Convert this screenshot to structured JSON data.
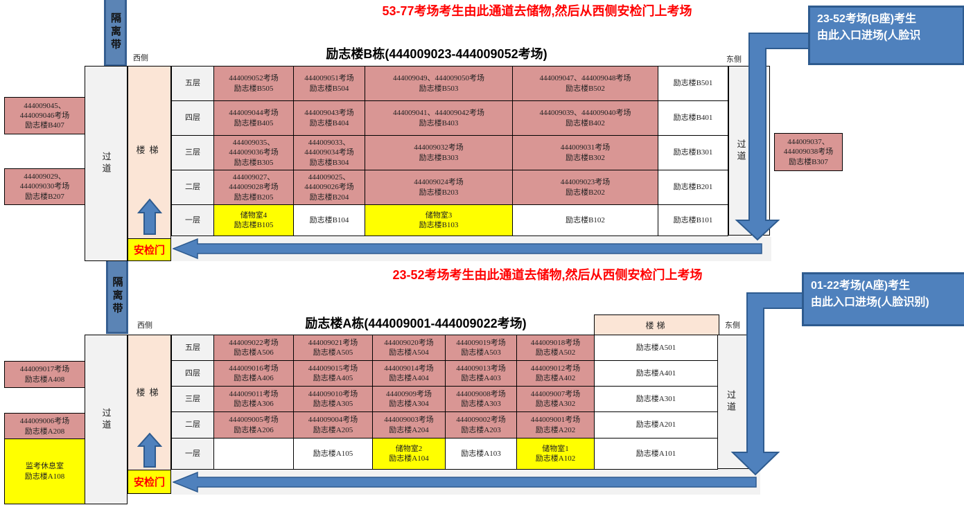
{
  "colors": {
    "room_pink": "#d99694",
    "storage_yellow": "#ffff00",
    "corridor_gray": "#f2f2f2",
    "stairs_peach": "#fbe5d6",
    "arrow_blue": "#4f81bd",
    "arrow_border": "#2e5b8f",
    "note_red": "#ff0000"
  },
  "notes": {
    "top": "53-77考场考生由此通道去储物,然后从西侧安检门上考场",
    "middle": "23-52考场考生由此通道去储物,然后从西侧安检门上考场"
  },
  "callouts": {
    "b": {
      "line1": "23-52考场(B座)考生",
      "line2": "由此入口进场(人脸识"
    },
    "a": {
      "line1": "01-22考场(A座)考生",
      "line2": "由此入口进场(人脸识别)"
    }
  },
  "labels": {
    "barrier": "隔离带",
    "west": "西侧",
    "east": "东侧",
    "corridor": "过道",
    "stairs": "楼梯",
    "gate": "安检门"
  },
  "building_b": {
    "title": "励志楼B栋(444009023-444009052考场)",
    "rows": [
      {
        "floor": "五层",
        "cells": [
          {
            "bg": "pink",
            "lines": [
              "444009052考场",
              "励志楼B505"
            ]
          },
          {
            "bg": "pink",
            "lines": [
              "444009051考场",
              "励志楼B504"
            ]
          },
          {
            "bg": "pink",
            "lines": [
              "444009049、444009050考场",
              "励志楼B503"
            ]
          },
          {
            "bg": "pink",
            "lines": [
              "444009047、444009048考场",
              "励志楼B502"
            ]
          },
          {
            "bg": "white",
            "lines": [
              "励志楼B501"
            ]
          }
        ]
      },
      {
        "floor": "四层",
        "cells": [
          {
            "bg": "pink",
            "lines": [
              "444009044考场",
              "励志楼B405"
            ]
          },
          {
            "bg": "pink",
            "lines": [
              "444009043考场",
              "励志楼B404"
            ]
          },
          {
            "bg": "pink",
            "lines": [
              "444009041、444009042考场",
              "励志楼B403"
            ]
          },
          {
            "bg": "pink",
            "lines": [
              "444009039、444009040考场",
              "励志楼B402"
            ]
          },
          {
            "bg": "white",
            "lines": [
              "励志楼B401"
            ]
          }
        ]
      },
      {
        "floor": "三层",
        "cells": [
          {
            "bg": "pink",
            "lines": [
              "444009035、",
              "444009036考场",
              "励志楼B305"
            ]
          },
          {
            "bg": "pink",
            "lines": [
              "444009033、",
              "444009034考场",
              "励志楼B304"
            ]
          },
          {
            "bg": "pink",
            "lines": [
              "444009032考场",
              "励志楼B303"
            ]
          },
          {
            "bg": "pink",
            "lines": [
              "444009031考场",
              "励志楼B302"
            ]
          },
          {
            "bg": "white",
            "lines": [
              "励志楼B301"
            ]
          }
        ]
      },
      {
        "floor": "二层",
        "cells": [
          {
            "bg": "pink",
            "lines": [
              "444009027、",
              "444009028考场",
              "励志楼B205"
            ]
          },
          {
            "bg": "pink",
            "lines": [
              "444009025、",
              "444009026考场",
              "励志楼B204"
            ]
          },
          {
            "bg": "pink",
            "lines": [
              "444009024考场",
              "励志楼B203"
            ]
          },
          {
            "bg": "pink",
            "lines": [
              "444009023考场",
              "励志楼B202"
            ]
          },
          {
            "bg": "white",
            "lines": [
              "励志楼B201"
            ]
          }
        ]
      },
      {
        "floor": "一层",
        "cells": [
          {
            "bg": "yellow",
            "lines": [
              "储物室4",
              "励志楼B105"
            ]
          },
          {
            "bg": "white",
            "lines": [
              "励志楼B104"
            ]
          },
          {
            "bg": "yellow",
            "lines": [
              "储物室3",
              "励志楼B103"
            ]
          },
          {
            "bg": "white",
            "lines": [
              "励志楼B102"
            ]
          },
          {
            "bg": "white",
            "lines": [
              "励志楼B101"
            ]
          }
        ]
      }
    ],
    "left_box_1": {
      "lines": [
        "444009045、",
        "444009046考场",
        "励志楼B407"
      ]
    },
    "left_box_2": {
      "lines": [
        "444009029、",
        "444009030考场",
        "励志楼B207"
      ]
    },
    "right_box": {
      "lines": [
        "444009037、",
        "444009038考场",
        "励志楼B307"
      ]
    }
  },
  "building_a": {
    "title": "励志楼A栋(444009001-444009022考场)",
    "stairs_header": "楼梯",
    "rows": [
      {
        "floor": "五层",
        "cells": [
          {
            "bg": "pink",
            "lines": [
              "444009022考场",
              "励志楼A506"
            ]
          },
          {
            "bg": "pink",
            "lines": [
              "444009021考场",
              "励志楼A505"
            ]
          },
          {
            "bg": "pink",
            "lines": [
              "444009020考场",
              "励志楼A504"
            ]
          },
          {
            "bg": "pink",
            "lines": [
              "444009019考场",
              "励志楼A503"
            ]
          },
          {
            "bg": "pink",
            "lines": [
              "444009018考场",
              "励志楼A502"
            ]
          },
          {
            "bg": "white",
            "lines": [
              "励志楼A501"
            ]
          }
        ]
      },
      {
        "floor": "四层",
        "cells": [
          {
            "bg": "pink",
            "lines": [
              "444009016考场",
              "励志楼A406"
            ]
          },
          {
            "bg": "pink",
            "lines": [
              "444009015考场",
              "励志楼A405"
            ]
          },
          {
            "bg": "pink",
            "lines": [
              "444009014考场",
              "励志楼A404"
            ]
          },
          {
            "bg": "pink",
            "lines": [
              "444009013考场",
              "励志楼A403"
            ]
          },
          {
            "bg": "pink",
            "lines": [
              "444009012考场",
              "励志楼A402"
            ]
          },
          {
            "bg": "white",
            "lines": [
              "励志楼A401"
            ]
          }
        ]
      },
      {
        "floor": "三层",
        "cells": [
          {
            "bg": "pink",
            "lines": [
              "444009011考场",
              "励志楼A306"
            ]
          },
          {
            "bg": "pink",
            "lines": [
              "444009010考场",
              "励志楼A305"
            ]
          },
          {
            "bg": "pink",
            "lines": [
              "44400909考场",
              "励志楼A304"
            ]
          },
          {
            "bg": "pink",
            "lines": [
              "444009008考场",
              "励志楼A303"
            ]
          },
          {
            "bg": "pink",
            "lines": [
              "444009007考场",
              "励志楼A302"
            ]
          },
          {
            "bg": "white",
            "lines": [
              "励志楼A301"
            ]
          }
        ]
      },
      {
        "floor": "二层",
        "cells": [
          {
            "bg": "pink",
            "lines": [
              "444009005考场",
              "励志楼A206"
            ]
          },
          {
            "bg": "pink",
            "lines": [
              "444009004考场",
              "励志楼A205"
            ]
          },
          {
            "bg": "pink",
            "lines": [
              "444009003考场",
              "励志楼A204"
            ]
          },
          {
            "bg": "pink",
            "lines": [
              "444009002考场",
              "励志楼A203"
            ]
          },
          {
            "bg": "pink",
            "lines": [
              "444009001考场",
              "励志楼A202"
            ]
          },
          {
            "bg": "white",
            "lines": [
              "励志楼A201"
            ]
          }
        ]
      },
      {
        "floor": "一层",
        "cells": [
          {
            "bg": "white",
            "lines": []
          },
          {
            "bg": "white",
            "lines": [
              "励志楼A105"
            ]
          },
          {
            "bg": "yellow",
            "lines": [
              "储物室2",
              "励志楼A104"
            ]
          },
          {
            "bg": "white",
            "lines": [
              "励志楼A103"
            ]
          },
          {
            "bg": "yellow",
            "lines": [
              "储物室1",
              "励志楼A102"
            ]
          },
          {
            "bg": "white",
            "lines": [
              "励志楼A101"
            ]
          }
        ]
      }
    ],
    "left_box_1": {
      "lines": [
        "444009017考场",
        "励志楼A408"
      ]
    },
    "left_box_2": {
      "lines": [
        "444009006考场",
        "励志楼A208"
      ]
    },
    "rest_box": {
      "lines": [
        "监考休息室",
        "励志楼A108"
      ]
    }
  }
}
